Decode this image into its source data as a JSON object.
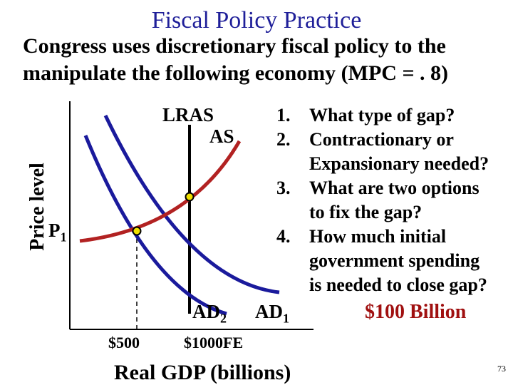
{
  "slide": {
    "title": "Fiscal Policy Practice",
    "subtitle_line1": "Congress uses discretionary fiscal policy to the",
    "subtitle_line2": "manipulate the following economy (MPC = . 8)",
    "slide_number": "73"
  },
  "diagram": {
    "y_axis_label": "Price level",
    "x_axis_label": "Real GDP (billions)",
    "curve_labels": {
      "lras": "LRAS",
      "as": "AS",
      "ad2": "AD",
      "ad2_sub": "2",
      "ad1": "AD",
      "ad1_sub": "1"
    },
    "price_label": "P",
    "price_label_sub": "1",
    "x_ticks": [
      "$500",
      "$1000FE"
    ],
    "colors": {
      "ad_curves": "#1a1a9c",
      "as_curve": "#b22222",
      "lras": "#000000",
      "point_fill": "#f0e000"
    }
  },
  "questions": [
    {
      "num": "1.",
      "text": "What type of gap?"
    },
    {
      "num": "2.",
      "text": "Contractionary or"
    },
    {
      "num": "",
      "text": "Expansionary needed?"
    },
    {
      "num": "3.",
      "text": "What are two options"
    },
    {
      "num": "",
      "text": "to fix the gap?"
    },
    {
      "num": "4.",
      "text": "How much initial"
    },
    {
      "num": "",
      "text": "government spending"
    },
    {
      "num": "",
      "text": "is needed to close gap?"
    }
  ],
  "answer": "$100 Billion"
}
